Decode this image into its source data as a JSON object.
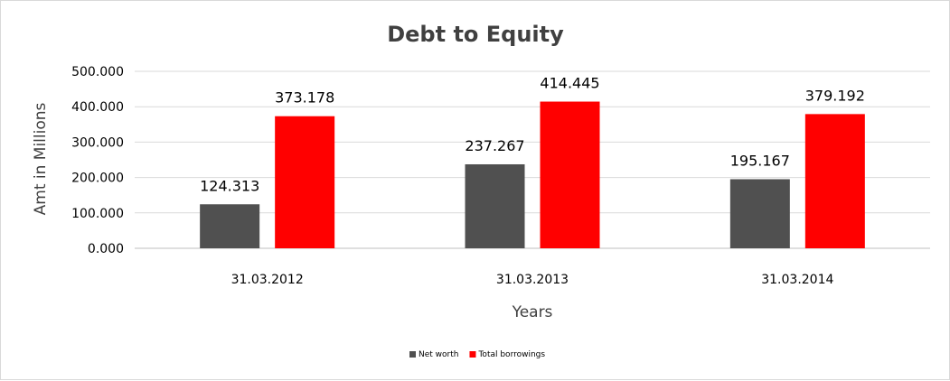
{
  "chart_data": {
    "type": "bar",
    "title": "Debt to Equity",
    "xlabel": "Years",
    "ylabel": "Amt in Millions",
    "categories": [
      "31.03.2012",
      "31.03.2013",
      "31.03.2014"
    ],
    "series": [
      {
        "name": "Net worth",
        "values": [
          124.313,
          237.267,
          195.167
        ],
        "color": "#505050"
      },
      {
        "name": "Total borrowings",
        "values": [
          373.178,
          414.445,
          379.192
        ],
        "color": "#ff0000"
      }
    ],
    "value_labels": [
      [
        "124.313",
        "237.267",
        "195.167"
      ],
      [
        "373.178",
        "414.445",
        "379.192"
      ]
    ],
    "ylim": [
      0,
      500
    ],
    "yticks": [
      0,
      100,
      200,
      300,
      400,
      500
    ],
    "ytick_labels": [
      "0.000",
      "100.000",
      "200.000",
      "300.000",
      "400.000",
      "500.000"
    ],
    "grid": true,
    "legend_position": "bottom"
  }
}
